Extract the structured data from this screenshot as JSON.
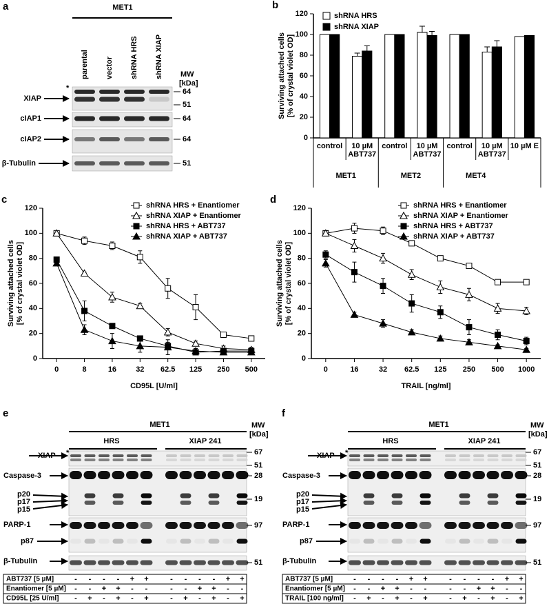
{
  "panel_a": {
    "label": "a",
    "title": "MET1",
    "lanes": [
      "parental",
      "vector",
      "shRNA HRS",
      "shRNA XIAP"
    ],
    "mw": "MW",
    "mw_unit": "[kDa]",
    "asterisk": "*",
    "rows": [
      "XIAP",
      "cIAP1",
      "cIAP2",
      "β-Tubulin"
    ],
    "mw_markers": [
      64,
      51,
      64,
      64,
      51
    ]
  },
  "panel_e": {
    "label": "e",
    "title": "MET1",
    "groups": [
      "HRS",
      "XIAP 241"
    ],
    "mw": "MW",
    "mw_unit": "[kDa]",
    "asterisk": "*",
    "rows": [
      "XIAP",
      "Caspase-3",
      "p20",
      "p17",
      "p15",
      "PARP-1",
      "p87",
      "β-Tubulin"
    ],
    "mw_markers": [
      67,
      51,
      28,
      19,
      97,
      51
    ],
    "treatments": [
      {
        "name": "ABT737 [5 µM]",
        "values": [
          "-",
          "-",
          "-",
          "-",
          "+",
          "+",
          "-",
          "-",
          "-",
          "-",
          "+",
          "+"
        ]
      },
      {
        "name": "Enantiomer [5 µM]",
        "values": [
          "-",
          "-",
          "+",
          "+",
          "-",
          "-",
          "-",
          "-",
          "+",
          "+",
          "-",
          "-"
        ]
      },
      {
        "name": "CD95L [25 U/ml]",
        "values": [
          "-",
          "+",
          "-",
          "+",
          "-",
          "+",
          "-",
          "+",
          "-",
          "+",
          "-",
          "+"
        ]
      }
    ]
  },
  "panel_f": {
    "label": "f",
    "title": "MET1",
    "groups": [
      "HRS",
      "XIAP 241"
    ],
    "mw": "MW",
    "mw_unit": "[kDa]",
    "asterisk": "*",
    "rows": [
      "XIAP",
      "Caspase-3",
      "p20",
      "p17",
      "p15",
      "PARP-1",
      "p87",
      "β-Tubulin"
    ],
    "mw_markers": [
      67,
      51,
      28,
      19,
      97,
      51
    ],
    "treatments": [
      {
        "name": "ABT737 [5 µM]",
        "values": [
          "-",
          "-",
          "-",
          "-",
          "+",
          "+",
          "-",
          "-",
          "-",
          "-",
          "+",
          "+"
        ]
      },
      {
        "name": "Enantiomer [5 µM]",
        "values": [
          "-",
          "-",
          "+",
          "+",
          "-",
          "-",
          "-",
          "-",
          "+",
          "+",
          "-",
          "-"
        ]
      },
      {
        "name": "TRAIL [100 ng/ml]",
        "values": [
          "-",
          "+",
          "-",
          "+",
          "-",
          "+",
          "-",
          "+",
          "-",
          "+",
          "-",
          "+"
        ]
      }
    ]
  },
  "chart_data": [
    {
      "type": "bar",
      "panel_label": "b",
      "y_label": [
        "Surviving attached cells",
        "[% of crystal violet OD]"
      ],
      "categories": [
        "control",
        "10 µM ABT737",
        "control",
        "10 µM ABT737",
        "control",
        "10 µM ABT737",
        "10 µM E"
      ],
      "groups": [
        "MET1",
        "MET2",
        "MET4"
      ],
      "series": [
        {
          "name": "shRNA HRS",
          "color": "#ffffff",
          "values": [
            100,
            79,
            100,
            102,
            100,
            83,
            98
          ],
          "errors": [
            0,
            3,
            0,
            6,
            0,
            5,
            0
          ]
        },
        {
          "name": "shRNA XIAP",
          "color": "#000000",
          "values": [
            100,
            84,
            100,
            99,
            100,
            88,
            99
          ],
          "errors": [
            0,
            5,
            0,
            4,
            0,
            6,
            0
          ]
        }
      ],
      "ylim": [
        0,
        120
      ],
      "yticks": [
        0,
        20,
        40,
        60,
        80,
        100,
        120
      ],
      "legend": "top-left"
    },
    {
      "type": "line",
      "panel_label": "c",
      "y_label": [
        "Surviving attached cells",
        "[% of crystal violet OD]"
      ],
      "x_label": "CD95L [U/ml]",
      "categories": [
        0,
        8,
        16,
        32,
        62.5,
        125,
        250,
        500
      ],
      "series": [
        {
          "name": "shRNA HRS + Enantiomer",
          "marker": "square",
          "color": "#ffffff",
          "values": [
            100,
            94,
            90,
            81,
            56,
            41,
            19,
            16
          ],
          "errors": [
            0,
            3,
            3,
            5,
            8,
            10,
            2,
            2
          ]
        },
        {
          "name": "shRNA XIAP + Enantiomer",
          "marker": "triangle",
          "color": "#ffffff",
          "values": [
            100,
            68,
            49,
            42,
            21,
            12,
            8,
            7
          ],
          "errors": [
            0,
            1,
            4,
            2,
            3,
            2,
            2,
            2
          ]
        },
        {
          "name": "shRNA HRS + ABT737",
          "marker": "square",
          "color": "#000000",
          "values": [
            79,
            38,
            26,
            16,
            10,
            5,
            6,
            6
          ],
          "errors": [
            2,
            8,
            2,
            2,
            3,
            2,
            2,
            2
          ]
        },
        {
          "name": "shRNA XIAP + ABT737",
          "marker": "triangle",
          "color": "#000000",
          "values": [
            76,
            23,
            14,
            10,
            9,
            6,
            5,
            5
          ],
          "errors": [
            2,
            4,
            6,
            5,
            6,
            2,
            2,
            2
          ]
        }
      ],
      "ylim": [
        0,
        120
      ],
      "yticks": [
        0,
        20,
        40,
        60,
        80,
        100,
        120
      ],
      "legend": "top-right"
    },
    {
      "type": "line",
      "panel_label": "d",
      "y_label": [
        "Surviving attached cells",
        "[% of crystal violet OD]"
      ],
      "x_label": "TRAIL [ng/ml]",
      "categories": [
        0,
        16,
        32,
        62.5,
        125,
        250,
        500,
        1000
      ],
      "series": [
        {
          "name": "shRNA HRS + Enantiomer",
          "marker": "square",
          "color": "#ffffff",
          "values": [
            100,
            104,
            102,
            92,
            80,
            74,
            61,
            61
          ],
          "errors": [
            0,
            4,
            3,
            2,
            1,
            2,
            1,
            1
          ]
        },
        {
          "name": "shRNA XIAP + Enantiomer",
          "marker": "triangle",
          "color": "#ffffff",
          "values": [
            100,
            90,
            80,
            67,
            57,
            51,
            40,
            38
          ],
          "errors": [
            2,
            5,
            4,
            4,
            5,
            5,
            4,
            3
          ]
        },
        {
          "name": "shRNA HRS + ABT737",
          "marker": "square",
          "color": "#000000",
          "values": [
            83,
            69,
            58,
            44,
            37,
            25,
            19,
            14
          ],
          "errors": [
            3,
            8,
            6,
            7,
            5,
            6,
            4,
            3
          ]
        },
        {
          "name": "shRNA XIAP + ABT737",
          "marker": "triangle",
          "color": "#000000",
          "values": [
            76,
            35,
            28,
            21,
            16,
            13,
            10,
            7
          ],
          "errors": [
            3,
            2,
            3,
            2,
            2,
            2,
            1,
            1
          ]
        }
      ],
      "ylim": [
        0,
        120
      ],
      "yticks": [
        0,
        20,
        40,
        60,
        80,
        100,
        120
      ],
      "legend": "top-right"
    }
  ]
}
